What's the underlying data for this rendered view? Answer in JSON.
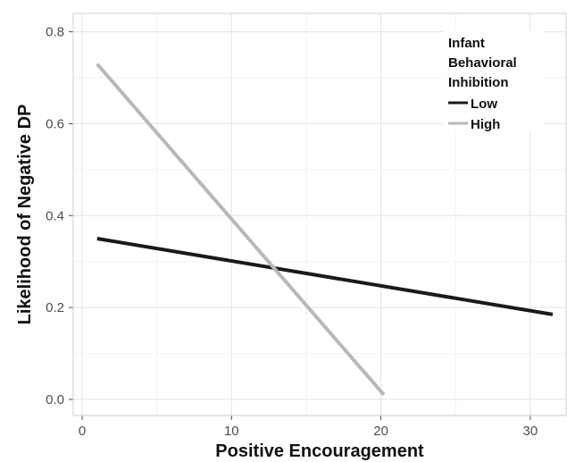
{
  "chart_data": {
    "type": "line",
    "title": "",
    "xlabel": "Positive Encouragement",
    "ylabel": "Likelihood of Negative DP",
    "xlim": [
      -0.6,
      32.4
    ],
    "ylim": [
      -0.035,
      0.84
    ],
    "x_ticks": [
      0,
      10,
      20,
      30
    ],
    "x_tick_labels": [
      "0",
      "10",
      "20",
      "30"
    ],
    "y_ticks": [
      0.0,
      0.2,
      0.4,
      0.6,
      0.8
    ],
    "y_tick_labels": [
      "0.0",
      "0.2",
      "0.4",
      "0.6",
      "0.8"
    ],
    "grid": true,
    "legend": {
      "title_lines": [
        "Infant",
        "Behavioral",
        "Inhibition"
      ],
      "position": "top-right inside plot"
    },
    "series": [
      {
        "name": "Low",
        "color": "#1a1a1a",
        "points": [
          [
            1,
            0.35
          ],
          [
            31.5,
            0.185
          ]
        ]
      },
      {
        "name": "High",
        "color": "#b8b8b8",
        "points": [
          [
            1,
            0.73
          ],
          [
            20.2,
            0.01
          ]
        ]
      }
    ]
  }
}
